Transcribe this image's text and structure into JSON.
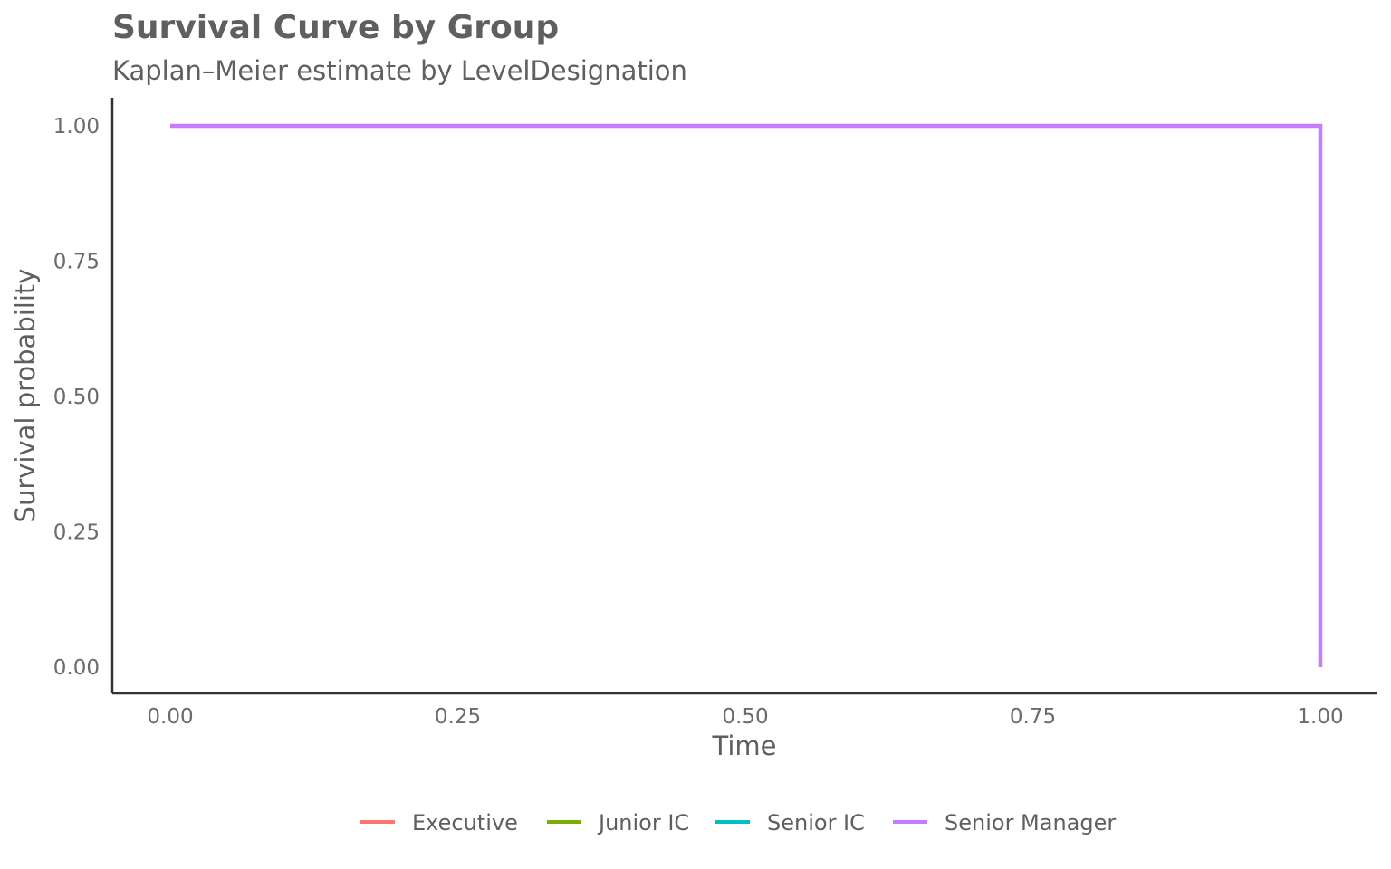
{
  "chart_data": {
    "type": "line",
    "step": true,
    "title": "Survival Curve by Group",
    "subtitle": "Kaplan–Meier estimate by LevelDesignation",
    "xlabel": "Time",
    "ylabel": "Survival probability",
    "xlim": [
      0,
      1
    ],
    "ylim": [
      0,
      1
    ],
    "x_ticks": [
      "0.00",
      "0.25",
      "0.50",
      "0.75",
      "1.00"
    ],
    "y_ticks": [
      "0.00",
      "0.25",
      "0.50",
      "0.75",
      "1.00"
    ],
    "x_tick_values": [
      0,
      0.25,
      0.5,
      0.75,
      1
    ],
    "y_tick_values": [
      0,
      0.25,
      0.5,
      0.75,
      1
    ],
    "grid": false,
    "legend_position": "bottom",
    "series": [
      {
        "name": "Executive",
        "color": "#F8766D",
        "x": [],
        "y": []
      },
      {
        "name": "Junior IC",
        "color": "#7CAE00",
        "x": [],
        "y": []
      },
      {
        "name": "Senior IC",
        "color": "#00BFC4",
        "x": [],
        "y": []
      },
      {
        "name": "Senior Manager",
        "color": "#C77CFF",
        "x": [
          0,
          1,
          1
        ],
        "y": [
          1,
          1,
          0
        ]
      }
    ]
  }
}
